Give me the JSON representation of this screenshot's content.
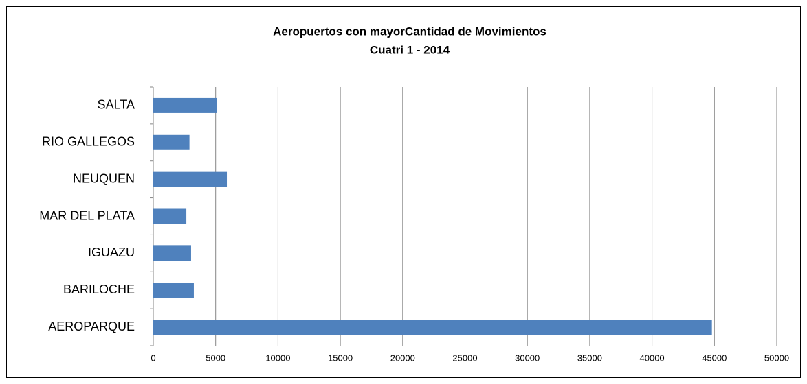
{
  "chart_data": {
    "type": "bar",
    "orientation": "horizontal",
    "title": "Aeropuertos con mayorCantidad de Movimientos",
    "subtitle": "Cuatri 1 - 2014",
    "categories": [
      "AEROPARQUE",
      "BARILOCHE",
      "IGUAZU",
      "MAR DEL PLATA",
      "NEUQUEN",
      "RIO GALLEGOS",
      "SALTA"
    ],
    "values": [
      44800,
      3250,
      3030,
      2650,
      5900,
      2900,
      5100
    ],
    "color": "#4f81bd",
    "xlim": [
      0,
      50000
    ],
    "xticks": [
      0,
      5000,
      10000,
      15000,
      20000,
      25000,
      30000,
      35000,
      40000,
      45000,
      50000
    ],
    "grid": true
  }
}
